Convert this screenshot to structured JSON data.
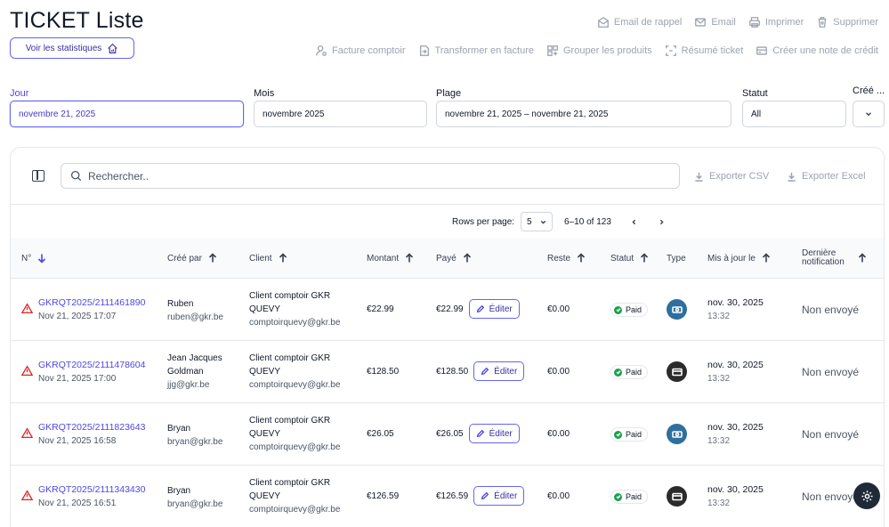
{
  "page": {
    "title": "TICKET Liste",
    "stats_button": "Voir les statistiques"
  },
  "toolbar": {
    "row1": [
      {
        "label": "Email de rappel",
        "icon": "mail-open-icon"
      },
      {
        "label": "Email",
        "icon": "mail-icon"
      },
      {
        "label": "Imprimer",
        "icon": "printer-icon"
      },
      {
        "label": "Supprimer",
        "icon": "trash-icon"
      }
    ],
    "row2": [
      {
        "label": "Facture comptoir",
        "icon": "user-settings-icon"
      },
      {
        "label": "Transformer en facture",
        "icon": "transform-icon"
      },
      {
        "label": "Grouper les produits",
        "icon": "group-icon"
      },
      {
        "label": "Résumé ticket",
        "icon": "summary-icon"
      },
      {
        "label": "Créer une note de crédit",
        "icon": "credit-card-icon"
      }
    ]
  },
  "filters": {
    "jour": {
      "label": "Jour",
      "value": "novembre 21, 2025"
    },
    "mois": {
      "label": "Mois",
      "value": "novembre 2025"
    },
    "plage": {
      "label": "Plage",
      "value": "novembre 21, 2025 – novembre 21, 2025"
    },
    "statut": {
      "label": "Statut",
      "value": "All"
    },
    "cree": {
      "label": "Créé ..."
    }
  },
  "table": {
    "search_placeholder": "Rechercher..",
    "export_csv": "Exporter CSV",
    "export_excel": "Exporter Excel",
    "pagination": {
      "rows_label": "Rows per page:",
      "rows_value": "5",
      "range": "6–10 of 123"
    },
    "columns": {
      "num": "N°",
      "cree_par": "Créé par",
      "client": "Client",
      "montant": "Montant",
      "paye": "Payé",
      "reste": "Reste",
      "statut": "Statut",
      "type": "Type",
      "maj": "Mis à jour le",
      "notif1": "Dernière",
      "notif2": "notification"
    },
    "edit_label": "Éditer",
    "rows": [
      {
        "id": "GKRQT2025/2111461890",
        "date": "Nov 21, 2025 17:07",
        "creator": "Ruben",
        "creator_email": "ruben@gkr.be",
        "client1": "Client comptoir GKR",
        "client2": "QUEVY",
        "client_email": "comptoirquevy@gkr.be",
        "montant": "€22.99",
        "paye": "€22.99",
        "reste": "€0.00",
        "statut": "Paid",
        "type_icon": "cash-icon",
        "type_color": "#2e6f9e",
        "maj_date": "nov. 30, 2025",
        "maj_time": "13:32",
        "notif": "Non envoyé"
      },
      {
        "id": "GKRQT2025/2111478604",
        "date": "Nov 21, 2025 17:00",
        "creator1": "Jean Jacques",
        "creator2": "Goldman",
        "creator_email": "jjg@gkr.be",
        "client1": "Client comptoir GKR",
        "client2": "QUEVY",
        "client_email": "comptoirquevy@gkr.be",
        "montant": "€128.50",
        "paye": "€128.50",
        "reste": "€0.00",
        "statut": "Paid",
        "type_icon": "card-icon",
        "type_color": "#2b2b2b",
        "maj_date": "nov. 30, 2025",
        "maj_time": "13:32",
        "notif": "Non envoyé"
      },
      {
        "id": "GKRQT2025/2111823643",
        "date": "Nov 21, 2025 16:58",
        "creator": "Bryan",
        "creator_email": "bryan@gkr.be",
        "client1": "Client comptoir GKR",
        "client2": "QUEVY",
        "client_email": "comptoirquevy@gkr.be",
        "montant": "€26.05",
        "paye": "€26.05",
        "reste": "€0.00",
        "statut": "Paid",
        "type_icon": "cash-icon",
        "type_color": "#2e6f9e",
        "maj_date": "nov. 30, 2025",
        "maj_time": "13:32",
        "notif": "Non envoyé"
      },
      {
        "id": "GKRQT2025/2111343430",
        "date": "Nov 21, 2025 16:51",
        "creator": "Bryan",
        "creator_email": "bryan@gkr.be",
        "client1": "Client comptoir GKR",
        "client2": "QUEVY",
        "client_email": "comptoirquevy@gkr.be",
        "montant": "€126.59",
        "paye": "€126.59",
        "reste": "€0.00",
        "statut": "Paid",
        "type_icon": "card-icon",
        "type_color": "#2b2b2b",
        "maj_date": "nov. 30, 2025",
        "maj_time": "13:32",
        "notif": "Non envoyé"
      }
    ]
  },
  "colors": {
    "accent": "#4f46e5",
    "danger": "#dc2626",
    "paid": "#16a34a"
  }
}
